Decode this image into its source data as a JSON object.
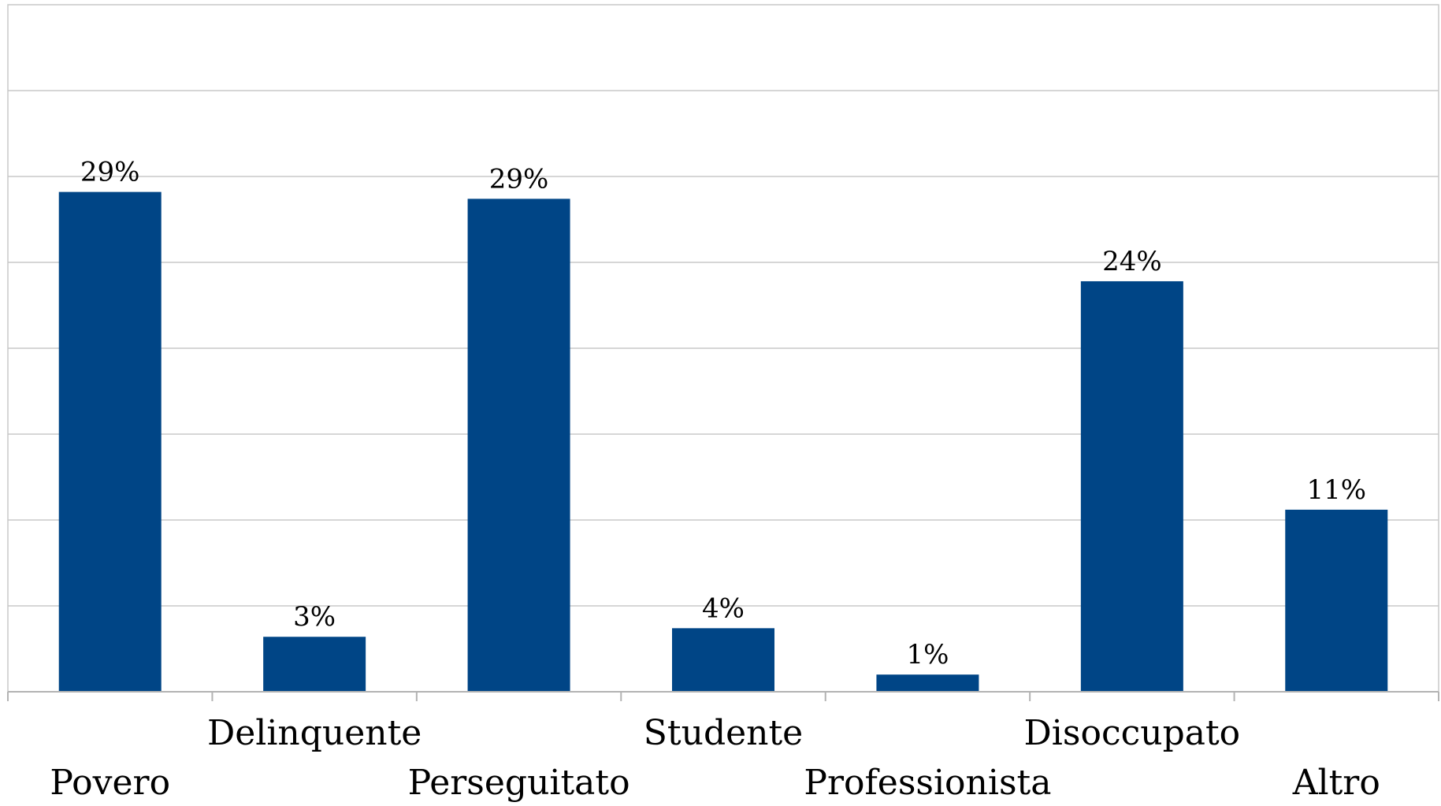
{
  "chart_data": {
    "type": "bar",
    "categories": [
      "Povero",
      "Delinquente",
      "Perseguitato",
      "Studente",
      "Professionista",
      "Disoccupato",
      "Altro"
    ],
    "values": [
      29,
      3,
      29,
      4,
      1,
      24,
      11
    ],
    "data_labels": [
      "29%",
      "3%",
      "29%",
      "4%",
      "1%",
      "24%",
      "11%"
    ],
    "plotted_values": [
      29.1,
      3.2,
      28.7,
      3.7,
      1.0,
      23.9,
      10.6
    ],
    "ylim": [
      0,
      40
    ],
    "gridline_interval": 5,
    "grid": true,
    "legend": "none",
    "title": "",
    "xlabel": "",
    "ylabel": "",
    "colors": {
      "bar": "#004586",
      "grid": "#c8c8c8",
      "axis": "#b3b3b3",
      "text": "#000000"
    }
  }
}
